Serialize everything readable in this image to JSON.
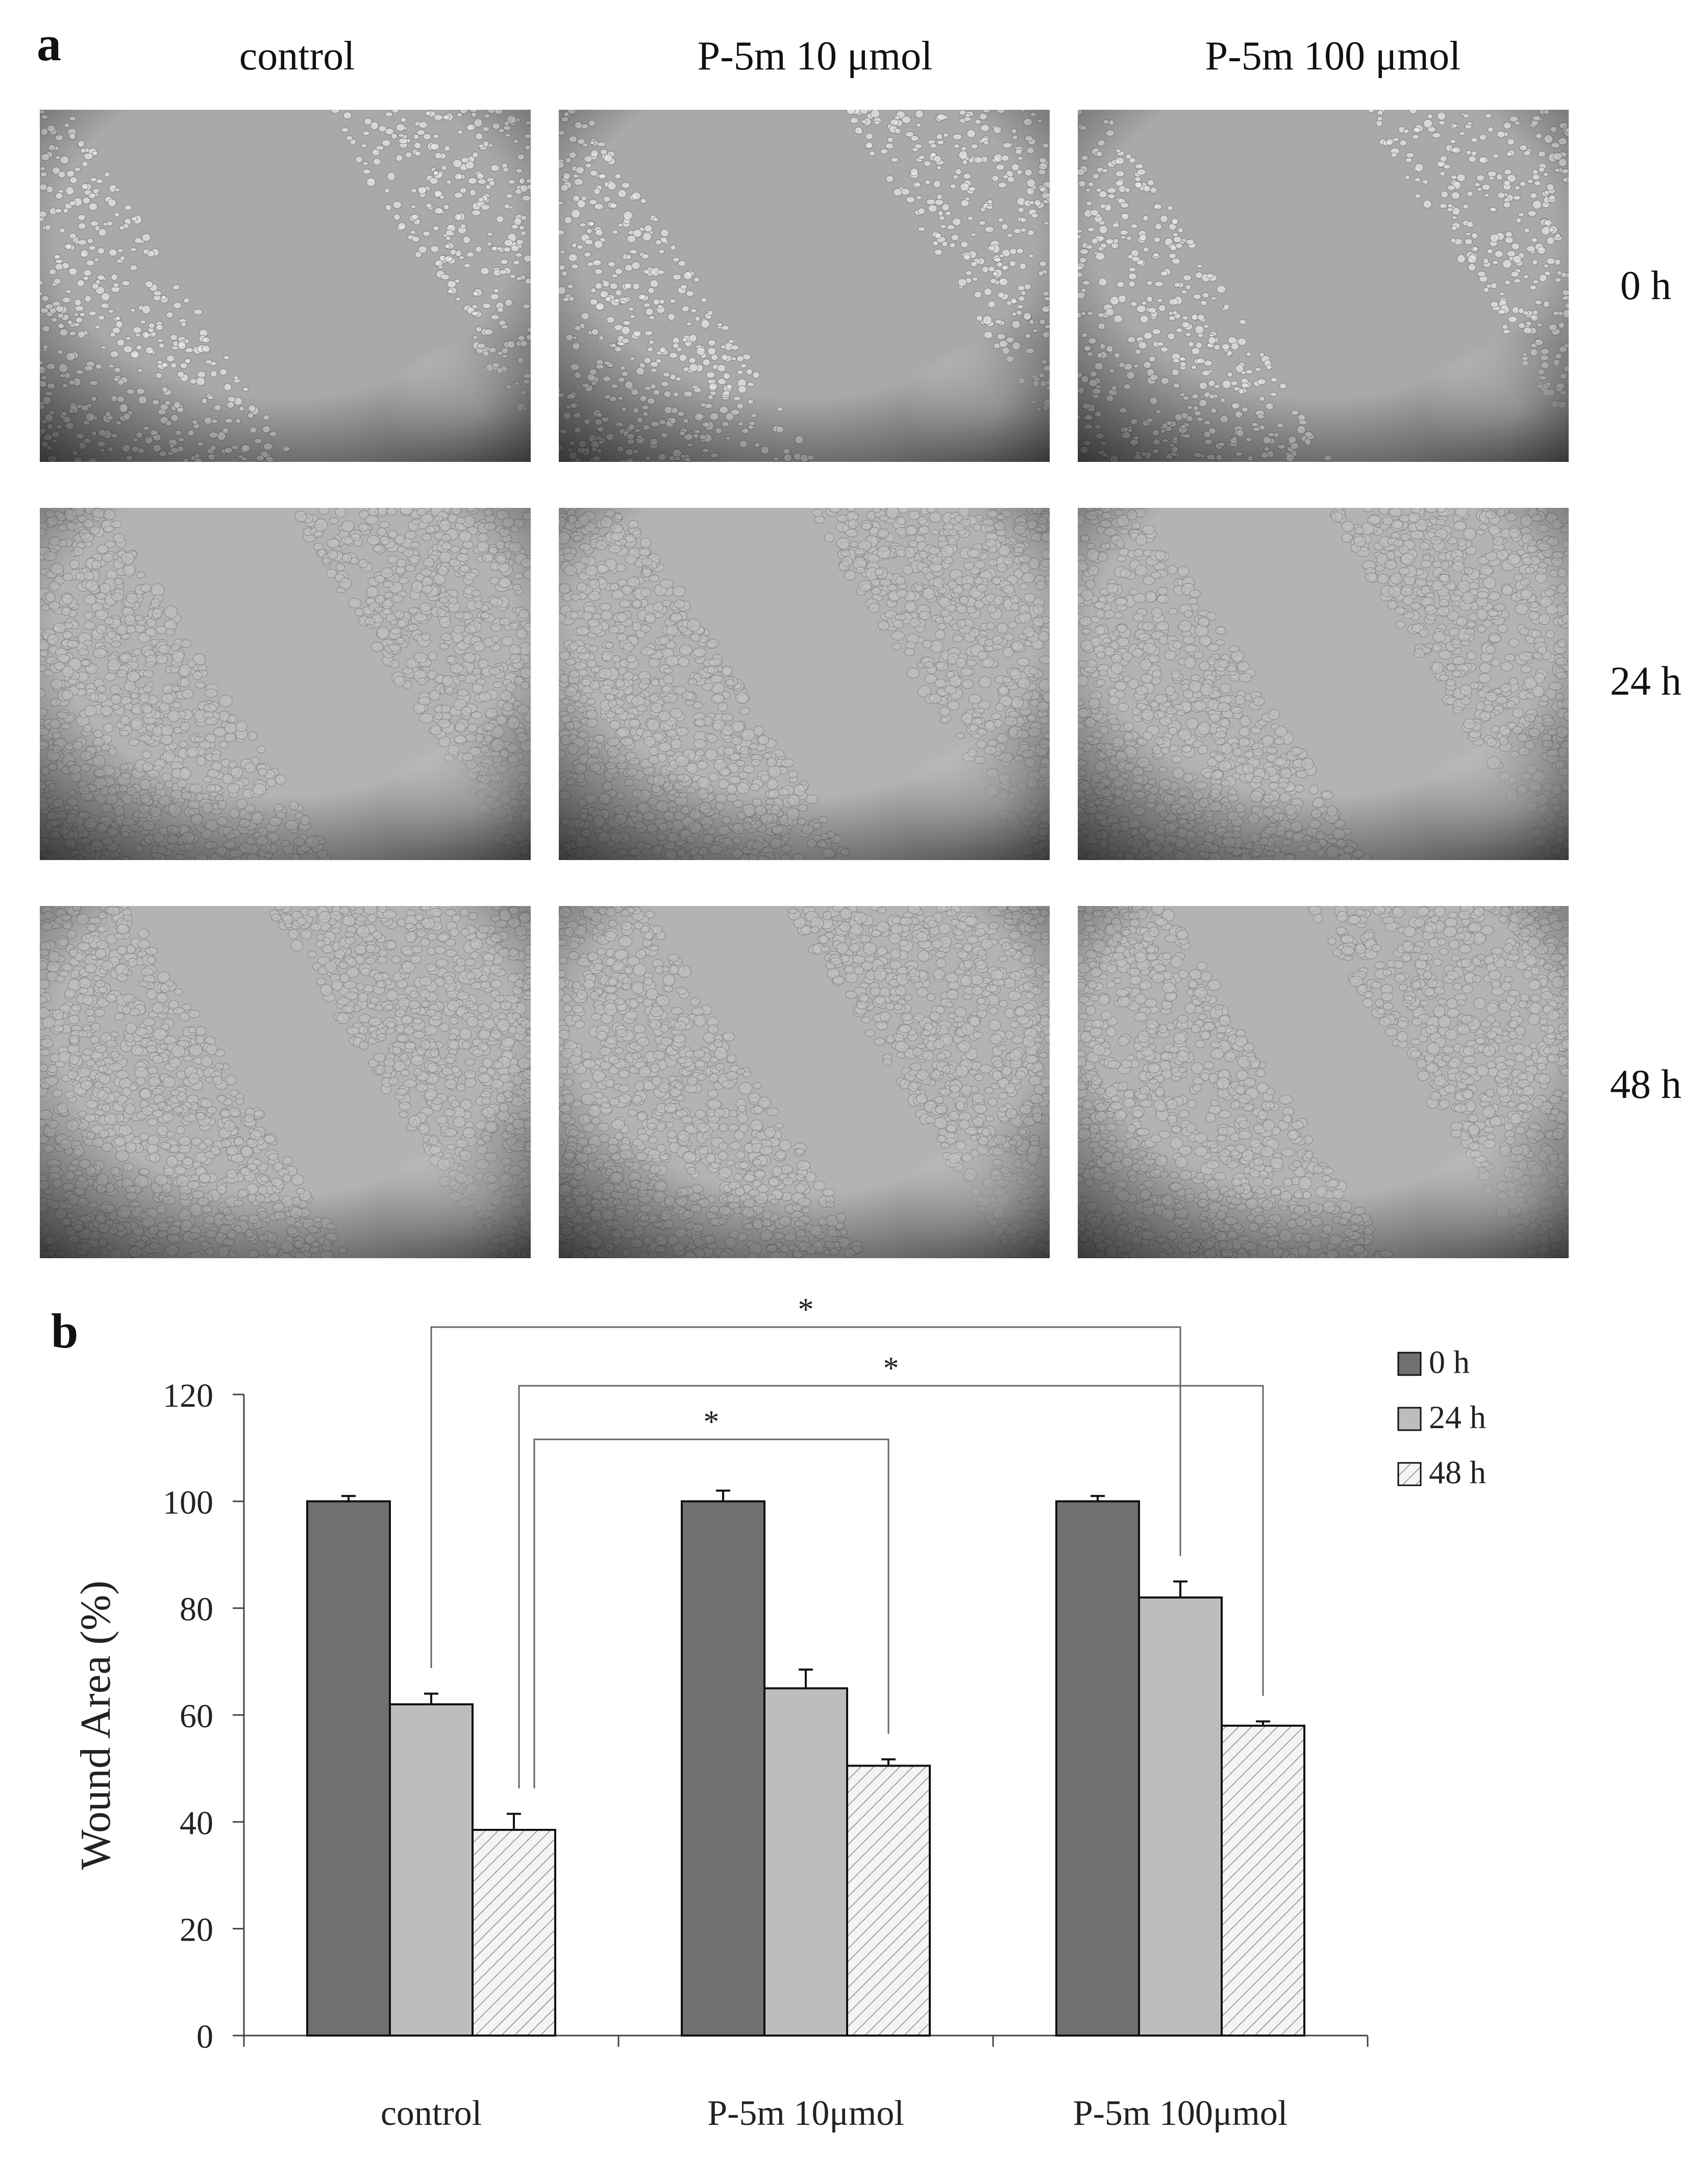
{
  "panel_a": {
    "letter": "a",
    "columns": [
      "control",
      "P-5m 10 μmol",
      "P-5m 100 μmol"
    ],
    "rows": [
      "0 h",
      "24 h",
      "48 h"
    ],
    "gap_fraction_by_row": [
      1.0,
      0.62,
      0.42
    ]
  },
  "panel_b": {
    "letter": "b"
  },
  "chart_data": {
    "type": "bar",
    "categories": [
      "control",
      "P-5m 10μmol",
      "P-5m 100μmol"
    ],
    "series": [
      {
        "name": "0 h",
        "values": [
          100,
          100,
          100
        ],
        "errors": [
          1,
          2,
          1
        ],
        "fill": "#707070",
        "pattern": "solid"
      },
      {
        "name": "24 h",
        "values": [
          62,
          65,
          82
        ],
        "errors": [
          2,
          3.5,
          3
        ],
        "fill": "#bdbdbd",
        "pattern": "solid"
      },
      {
        "name": "48 h",
        "values": [
          38.5,
          50.5,
          58
        ],
        "errors": [
          3,
          1.2,
          0.8
        ],
        "fill": "#f4f4f4",
        "pattern": "hatch"
      }
    ],
    "title": "",
    "xlabel": "",
    "ylabel": "Wound Area (%)",
    "ylim": [
      0,
      120
    ],
    "yticks": [
      0,
      20,
      40,
      60,
      80,
      100,
      120
    ],
    "grid": false,
    "legend": "top-right",
    "significance": [
      {
        "from": {
          "category": 0,
          "series": 1
        },
        "to": {
          "category": 2,
          "series": 1
        },
        "label": "*"
      },
      {
        "from": {
          "category": 0,
          "series": 2
        },
        "to": {
          "category": 2,
          "series": 2
        },
        "label": "*"
      },
      {
        "from": {
          "category": 0,
          "series": 2
        },
        "to": {
          "category": 1,
          "series": 2
        },
        "label": "*"
      }
    ]
  }
}
